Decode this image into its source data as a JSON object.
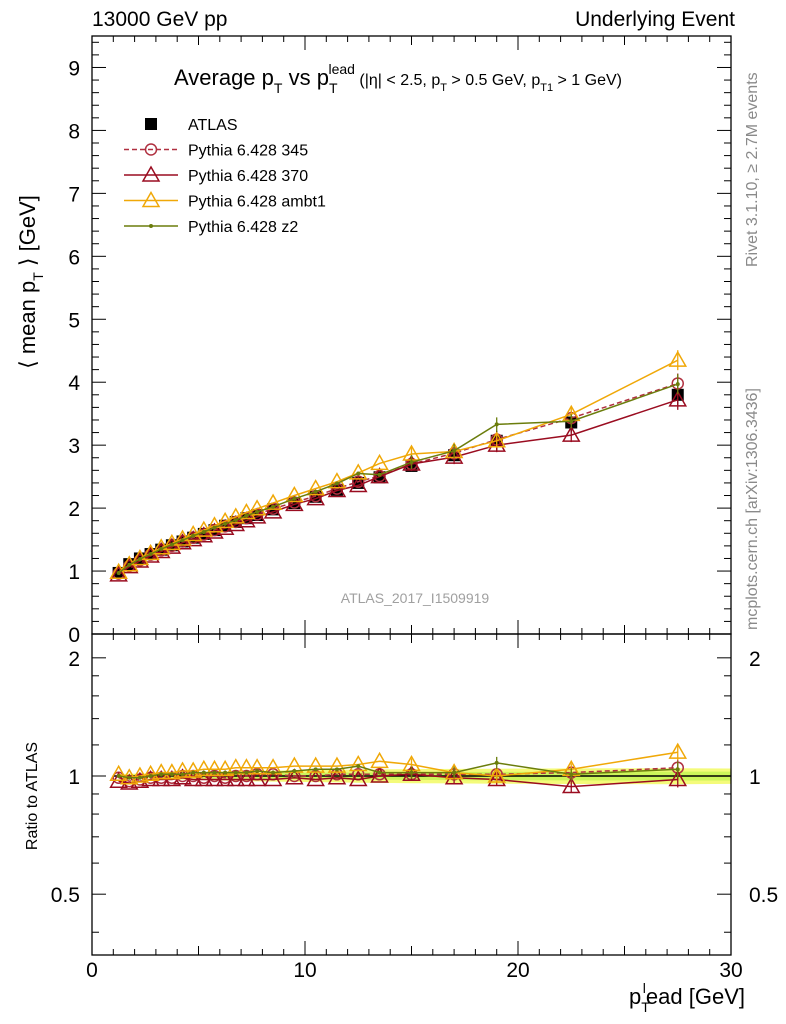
{
  "header": {
    "left": "13000 GeV pp",
    "right": "Underlying Event"
  },
  "side_labels": {
    "rivet": "Rivet 3.1.10, ≥ 2.7M events",
    "mcplots": "mcplots.cern.ch [arXiv:1306.3436]"
  },
  "chart_data": [
    {
      "type": "line",
      "title": {
        "main": "Average p",
        "main_sub": "T",
        "vs": " vs p",
        "vs_sub": "T",
        "vs_sup": "lead",
        "cuts_pre": " (|η| < 2.5, p",
        "cuts_sub1": "T",
        "cuts_mid": " > 0.5 GeV, p",
        "cuts_sub2": "T1",
        "cuts_post": " > 1 GeV)"
      },
      "xlabel": {
        "main": "p",
        "sub": "T",
        "sup": "l",
        "rest": "ead [GeV]"
      },
      "ylabel": {
        "pre": "⟨ mean p",
        "sub": "T",
        "post": " ⟩ [GeV]"
      },
      "xlim": [
        0,
        30
      ],
      "ylim": [
        0,
        9.5
      ],
      "yticks": [
        "0",
        "1",
        "2",
        "3",
        "4",
        "5",
        "6",
        "7",
        "8",
        "9"
      ],
      "watermark": "ATLAS_2017_I1509919",
      "x": [
        1.25,
        1.75,
        2.25,
        2.75,
        3.25,
        3.75,
        4.25,
        4.75,
        5.25,
        5.75,
        6.25,
        6.75,
        7.25,
        7.75,
        8.5,
        9.5,
        10.5,
        11.5,
        12.5,
        13.5,
        15.0,
        17.0,
        19.0,
        22.5,
        27.5
      ],
      "series": [
        {
          "name": "ATLAS",
          "color": "#000000",
          "marker": "square",
          "style": "none",
          "values": [
            0.97,
            1.11,
            1.2,
            1.27,
            1.34,
            1.41,
            1.47,
            1.53,
            1.59,
            1.65,
            1.72,
            1.78,
            1.84,
            1.89,
            1.98,
            2.08,
            2.18,
            2.29,
            2.4,
            2.49,
            2.67,
            2.84,
            3.07,
            3.36,
            3.8
          ]
        },
        {
          "name": "Pythia 6.428 345",
          "color": "#b03040",
          "marker": "circle",
          "style": "dashed",
          "values": [
            0.96,
            1.08,
            1.17,
            1.26,
            1.33,
            1.4,
            1.47,
            1.53,
            1.58,
            1.65,
            1.71,
            1.78,
            1.84,
            1.9,
            1.99,
            2.09,
            2.19,
            2.31,
            2.42,
            2.51,
            2.7,
            2.87,
            3.09,
            3.43,
            3.98
          ]
        },
        {
          "name": "Pythia 6.428 370",
          "color": "#9a0c20",
          "marker": "triangle",
          "style": "solid",
          "values": [
            0.94,
            1.07,
            1.16,
            1.24,
            1.31,
            1.38,
            1.45,
            1.5,
            1.56,
            1.62,
            1.68,
            1.74,
            1.8,
            1.86,
            1.94,
            2.06,
            2.15,
            2.28,
            2.36,
            2.5,
            2.7,
            2.81,
            3.0,
            3.16,
            3.72
          ]
        },
        {
          "name": "Pythia 6.428 ambt1",
          "color": "#f0a808",
          "marker": "triangle",
          "style": "solid",
          "values": [
            0.98,
            1.1,
            1.2,
            1.28,
            1.37,
            1.44,
            1.51,
            1.58,
            1.65,
            1.72,
            1.79,
            1.86,
            1.93,
            1.99,
            2.08,
            2.2,
            2.31,
            2.42,
            2.56,
            2.71,
            2.86,
            2.9,
            3.07,
            3.49,
            4.35
          ]
        },
        {
          "name": "Pythia 6.428 z2",
          "color": "#6b7d0c",
          "marker": "dot",
          "style": "solid",
          "values": [
            0.97,
            1.1,
            1.19,
            1.27,
            1.35,
            1.42,
            1.49,
            1.56,
            1.62,
            1.69,
            1.75,
            1.81,
            1.88,
            1.94,
            2.02,
            2.15,
            2.26,
            2.39,
            2.55,
            2.53,
            2.73,
            2.91,
            3.33,
            3.38,
            3.97
          ]
        }
      ]
    },
    {
      "type": "line",
      "ylabel": "Ratio to ATLAS",
      "ylim": [
        0.35,
        2.3
      ],
      "yscale": "log",
      "yticks": [
        "0.5",
        "1",
        "2"
      ],
      "xticks": [
        "0",
        "10",
        "20",
        "30"
      ],
      "reference_band": {
        "color": "#ccf55a",
        "edge": "#f4fb7a"
      },
      "series": [
        {
          "name": "Pythia 6.428 345",
          "values": [
            0.99,
            0.97,
            0.98,
            0.99,
            0.99,
            0.99,
            1.0,
            1.0,
            0.99,
            1.0,
            0.99,
            1.0,
            1.0,
            1.01,
            1.01,
            1.0,
            1.0,
            1.01,
            1.01,
            1.01,
            1.01,
            1.01,
            1.01,
            1.02,
            1.05
          ]
        },
        {
          "name": "Pythia 6.428 370",
          "values": [
            0.97,
            0.96,
            0.97,
            0.98,
            0.98,
            0.98,
            0.99,
            0.98,
            0.98,
            0.98,
            0.98,
            0.98,
            0.98,
            0.98,
            0.98,
            0.99,
            0.98,
            0.99,
            0.98,
            1.0,
            1.01,
            0.99,
            0.98,
            0.94,
            0.98
          ]
        },
        {
          "name": "Pythia 6.428 ambt1",
          "values": [
            1.01,
            0.99,
            1.0,
            1.01,
            1.02,
            1.02,
            1.03,
            1.03,
            1.04,
            1.04,
            1.04,
            1.05,
            1.05,
            1.05,
            1.05,
            1.06,
            1.06,
            1.06,
            1.07,
            1.09,
            1.07,
            1.02,
            1.0,
            1.04,
            1.15
          ]
        },
        {
          "name": "Pythia 6.428 z2",
          "values": [
            1.0,
            0.99,
            0.99,
            1.0,
            1.01,
            1.01,
            1.01,
            1.02,
            1.02,
            1.02,
            1.02,
            1.02,
            1.02,
            1.03,
            1.02,
            1.03,
            1.04,
            1.04,
            1.06,
            1.02,
            1.02,
            1.02,
            1.08,
            1.01,
            1.04
          ]
        }
      ]
    }
  ]
}
